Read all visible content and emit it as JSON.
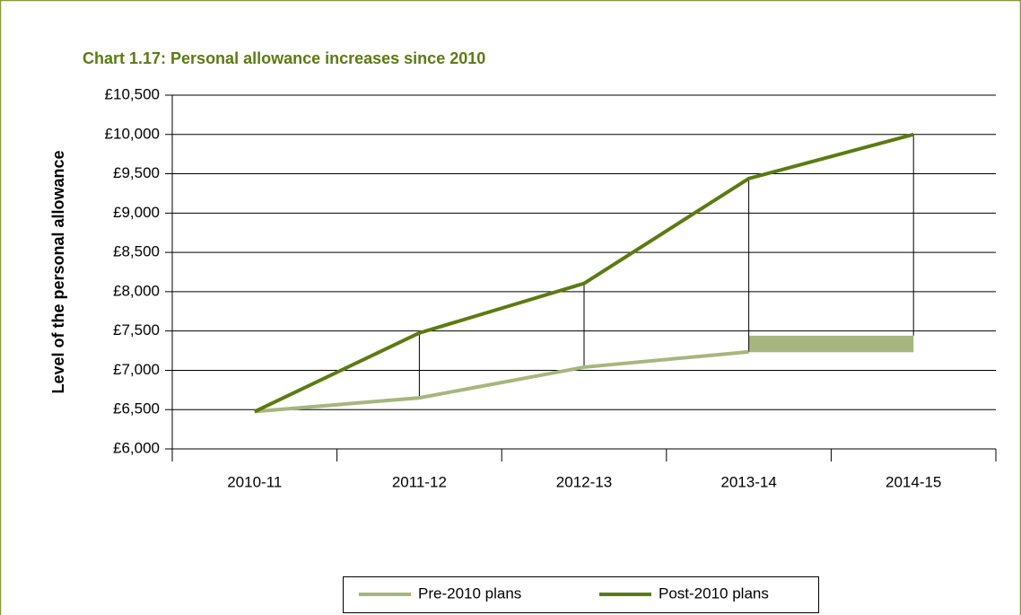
{
  "chart_data": {
    "type": "line",
    "title": "Chart 1.17: Personal allowance increases since 2010",
    "y_label": "Level of the personal allowance",
    "categories": [
      "2010-11",
      "2011-12",
      "2012-13",
      "2013-14",
      "2014-15"
    ],
    "series": [
      {
        "name": "Pre-2010 plans",
        "color": "#a6b67e",
        "values": [
          6475,
          6650,
          7040,
          7235,
          null
        ]
      },
      {
        "name": "Post-2010 plans",
        "color": "#5b7b12",
        "values": [
          6475,
          7475,
          8105,
          9440,
          10000
        ]
      }
    ],
    "shaded_range": [
      7230,
      7440
    ],
    "ylim": [
      6000,
      10500
    ],
    "yticks": [
      {
        "value": 6000,
        "label": "£6,000"
      },
      {
        "value": 6500,
        "label": "£6,500"
      },
      {
        "value": 7000,
        "label": "£7,000"
      },
      {
        "value": 7500,
        "label": "£7,500"
      },
      {
        "value": 8000,
        "label": "£8,000"
      },
      {
        "value": 8500,
        "label": "£8,500"
      },
      {
        "value": 9000,
        "label": "£9,000"
      },
      {
        "value": 9500,
        "label": "£9,500"
      },
      {
        "value": 10000,
        "label": "£10,000"
      },
      {
        "value": 10500,
        "label": "£10,500"
      }
    ],
    "grid": true
  }
}
